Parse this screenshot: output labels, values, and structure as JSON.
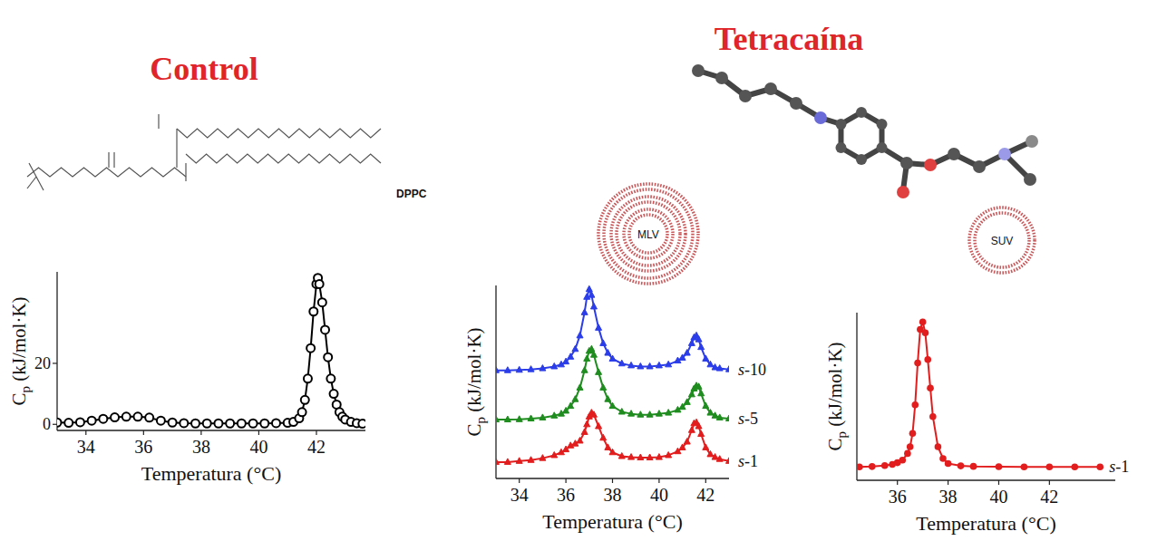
{
  "chart_data": [
    {
      "type": "line",
      "title": "Control",
      "annotations": [
        "DPPC"
      ],
      "x_label": "Temperatura (°C)",
      "y_label": "Cp (kJ/mol·K)",
      "x": [
        33.0,
        33.4,
        33.8,
        34.2,
        34.6,
        35.0,
        35.4,
        35.8,
        36.2,
        36.6,
        37.0,
        37.4,
        37.8,
        38.2,
        38.6,
        39.0,
        39.4,
        39.8,
        40.2,
        40.6,
        41.0,
        41.2,
        41.4,
        41.5,
        41.6,
        41.7,
        41.8,
        41.9,
        42.0,
        42.05,
        42.1,
        42.2,
        42.3,
        42.4,
        42.5,
        42.6,
        42.7,
        42.8,
        42.9,
        43.0,
        43.2,
        43.4,
        43.6
      ],
      "values": [
        0.6,
        0.5,
        0.7,
        1.2,
        1.8,
        2.3,
        2.5,
        2.5,
        2.2,
        1.2,
        0.6,
        0.4,
        0.3,
        0.3,
        0.3,
        0.3,
        0.3,
        0.3,
        0.3,
        0.4,
        0.5,
        0.8,
        2,
        4,
        8,
        15,
        25,
        37,
        46,
        48,
        46,
        40,
        31,
        22,
        15,
        10,
        6.5,
        4,
        2.5,
        1.6,
        0.8,
        0.4,
        0.2
      ],
      "color": "#000000",
      "marker": "open-circle",
      "xlim": [
        33,
        43.7
      ],
      "xticks": [
        34,
        36,
        38,
        40,
        42
      ],
      "ylim": [
        -2,
        50
      ],
      "yticks": [
        0,
        20
      ],
      "grid": false
    },
    {
      "type": "line",
      "title": "Tetracaína",
      "annotations": [
        "MLV"
      ],
      "x_label": "Temperatura (°C)",
      "y_label": "Cp (kJ/mol·K)",
      "x": [
        33.0,
        33.5,
        34.0,
        34.5,
        35.0,
        35.5,
        35.8,
        36.0,
        36.2,
        36.4,
        36.6,
        36.8,
        36.9,
        37.0,
        37.1,
        37.2,
        37.4,
        37.6,
        37.8,
        38.0,
        38.4,
        38.8,
        39.2,
        39.6,
        40.0,
        40.4,
        40.8,
        41.0,
        41.2,
        41.4,
        41.5,
        41.6,
        41.7,
        41.8,
        42.0,
        42.2,
        42.4,
        42.6,
        43.0
      ],
      "series": [
        {
          "name": "s-10",
          "color": "#2b3de8",
          "marker": "triangle",
          "values": [
            56,
            56,
            56.2,
            56.5,
            57,
            58,
            59,
            60.5,
            63,
            67,
            74,
            86,
            94,
            98,
            95,
            89,
            78,
            70,
            65,
            62,
            59.5,
            58.5,
            58,
            58,
            58.5,
            59,
            61,
            62.5,
            65,
            70,
            73,
            74,
            72,
            68,
            62,
            59,
            57.5,
            57,
            56.5
          ]
        },
        {
          "name": "s-5",
          "color": "#1e8c1e",
          "marker": "triangle",
          "values": [
            30.5,
            30.5,
            30.6,
            31,
            31.5,
            32.5,
            33.5,
            35,
            37.5,
            41,
            47,
            56,
            62,
            66,
            67,
            64,
            55,
            47,
            41,
            37.5,
            34.5,
            33.5,
            33,
            33,
            33.5,
            34,
            35.5,
            37,
            39.5,
            43.5,
            46.5,
            48,
            47.5,
            44,
            37.5,
            34,
            32.5,
            31.5,
            31
          ]
        },
        {
          "name": "s-1",
          "color": "#e21d1d",
          "marker": "triangle",
          "values": [
            8.5,
            8.5,
            9,
            9.5,
            10.5,
            12,
            13.5,
            15,
            17,
            18,
            19.5,
            24,
            28,
            32,
            34,
            33,
            27,
            21,
            16,
            13.5,
            11.5,
            11,
            10.8,
            10.8,
            11,
            12,
            14,
            16,
            19,
            25,
            28.5,
            29,
            27,
            23,
            16,
            12.5,
            11,
            10,
            9
          ]
        }
      ],
      "xlim": [
        33,
        43
      ],
      "xticks": [
        34,
        36,
        38,
        40,
        42
      ],
      "ylim": [
        0,
        100
      ],
      "tick_labels": "x",
      "grid": false
    },
    {
      "type": "line",
      "annotations": [
        "SUV"
      ],
      "x_label": "Temperatura (°C)",
      "y_label": "Cp (kJ/mol·K)",
      "x": [
        34.5,
        35.0,
        35.5,
        35.8,
        36.0,
        36.2,
        36.4,
        36.5,
        36.6,
        36.7,
        36.8,
        36.9,
        37.0,
        37.1,
        37.2,
        37.3,
        37.4,
        37.6,
        37.8,
        38.0,
        38.5,
        39.0,
        40.0,
        41.0,
        42.0,
        43.0,
        44.0
      ],
      "series": [
        {
          "name": "s-1",
          "color": "#e21d1d",
          "marker": "circle",
          "values": [
            8,
            8.2,
            8.8,
            9.5,
            10.5,
            12,
            16,
            20,
            28,
            45,
            70,
            90,
            94.5,
            88,
            72,
            55,
            38,
            20,
            13,
            10,
            8.6,
            8.3,
            8.1,
            8,
            8,
            8,
            8
          ]
        }
      ],
      "xlim": [
        34.4,
        44.6
      ],
      "xticks": [
        36,
        38,
        40,
        42
      ],
      "ylim": [
        0,
        100
      ],
      "tick_labels": "x",
      "grid": false
    }
  ]
}
